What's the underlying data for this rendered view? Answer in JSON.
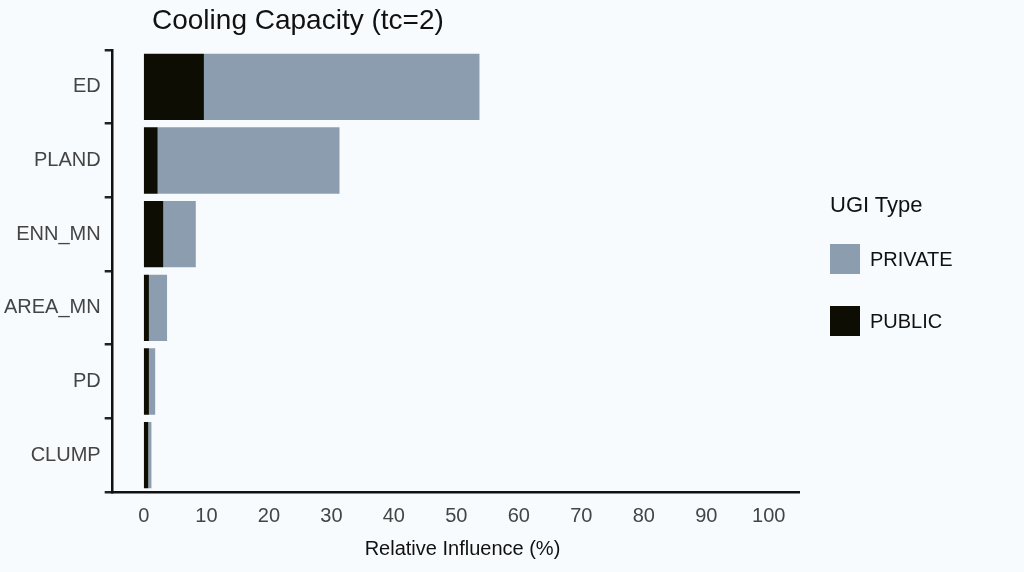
{
  "chart_data": {
    "type": "bar",
    "orientation": "horizontal",
    "stacked": true,
    "title": "Cooling Capacity (tc=2)",
    "xlabel": "Relative Influence (%)",
    "legend_title": "UGI Type",
    "legend": "right",
    "grid": false,
    "categories": [
      "ED",
      "PLAND",
      "ENN_MN",
      "AREA_MN",
      "PD",
      "CLUMP"
    ],
    "series": [
      {
        "name": "PUBLIC",
        "color": "#0e0d03",
        "values": [
          9.6,
          2.2,
          3.1,
          0.8,
          0.8,
          0.7
        ]
      },
      {
        "name": "PRIVATE",
        "color": "#8c9daf",
        "values": [
          44.1,
          29.1,
          5.2,
          2.9,
          1.0,
          0.5
        ]
      }
    ],
    "xlim": [
      -5,
      105
    ],
    "xticks": [
      0,
      10,
      20,
      30,
      40,
      50,
      60,
      70,
      80,
      90,
      100
    ]
  }
}
